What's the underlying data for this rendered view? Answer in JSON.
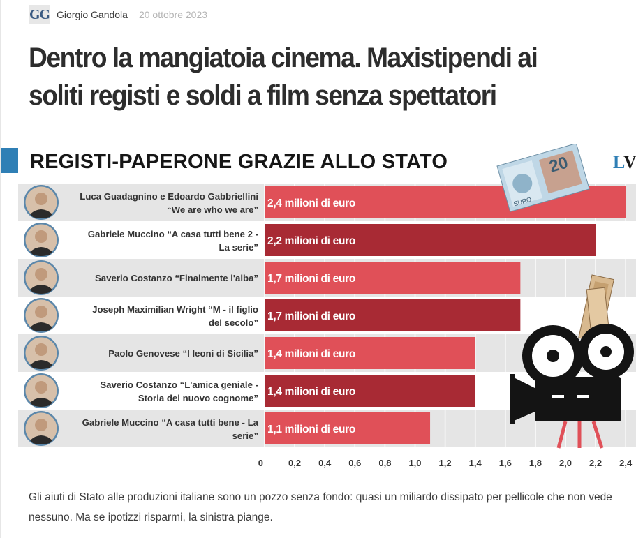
{
  "byline": {
    "logo": "GG",
    "author": "Giorgio Gandola",
    "date": "20 ottobre 2023"
  },
  "headline": "Dentro la mangiatoia cinema. Maxistipendi ai soliti registi e soldi a film senza spettatori",
  "brand": {
    "l": "L",
    "v": "V"
  },
  "colors": {
    "accent": "#2f7fb5",
    "bar_light": "#e05058",
    "bar_dark": "#a82a34",
    "row_bg": "#e5e5e5"
  },
  "chart_data": {
    "type": "bar",
    "orientation": "horizontal",
    "title": "REGISTI-PAPERONE GRAZIE ALLO STATO",
    "xlabel": "",
    "ylabel": "",
    "categories": [
      [
        "Luca Guadagnino e Edoardo Gabbriellini",
        "“We are who we are”"
      ],
      [
        "Gabriele Muccino “A casa tutti bene 2 -",
        "La serie”"
      ],
      [
        "Saverio Costanzo “Finalmente l'alba”"
      ],
      [
        "Joseph Maximilian Wright “M - il figlio",
        "del secolo”"
      ],
      [
        "Paolo Genovese “I leoni di Sicilia”"
      ],
      [
        "Saverio Costanzo “L'amica geniale -",
        "Storia del nuovo cognome”"
      ],
      [
        "Gabriele Muccino “A casa tutti bene - La",
        "serie”"
      ]
    ],
    "values": [
      2.4,
      2.2,
      1.7,
      1.7,
      1.4,
      1.4,
      1.1
    ],
    "labels": [
      "2,4 milioni di euro",
      "2,2 milioni di euro",
      "1,7 milioni di euro",
      "1,7 milioni di euro",
      "1,4 milioni di euro",
      "1,4 milioni di euro",
      "1,1 milioni di euro"
    ],
    "xlim": [
      0,
      2.4
    ],
    "ticks": [
      0,
      0.2,
      0.4,
      0.6,
      0.8,
      1.0,
      1.2,
      1.4,
      1.6,
      1.8,
      2.0,
      2.2,
      2.4
    ],
    "tick_labels": [
      "0",
      "0,2",
      "0,4",
      "0,6",
      "0,8",
      "1,0",
      "1,2",
      "1,4",
      "1,6",
      "1,8",
      "2,0",
      "2,2",
      "2,4"
    ],
    "grid": true
  },
  "banknote": {
    "value": "20",
    "euro": "EURO"
  },
  "caption": "Gli aiuti di Stato alle produzioni italiane sono un pozzo senza fondo: quasi un miliardo dissipato per pellicole che non vede nessuno. Ma se ipotizzi risparmi, la sinistra piange."
}
